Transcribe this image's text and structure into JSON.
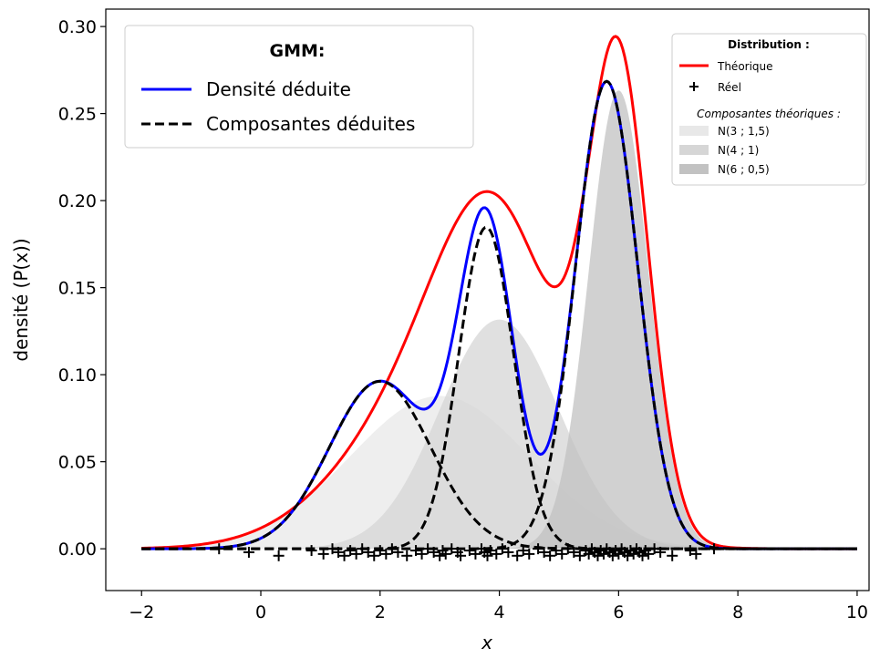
{
  "chart_data": {
    "type": "line",
    "xlabel": "x",
    "ylabel": "densité (P(x))",
    "xlim": [
      -2.6,
      10.2
    ],
    "ylim": [
      -0.024,
      0.31
    ],
    "x_ticks": [
      -2,
      0,
      2,
      4,
      6,
      8,
      10
    ],
    "x_tick_labels": [
      "−2",
      "0",
      "2",
      "4",
      "6",
      "8",
      "10"
    ],
    "y_ticks": [
      0.0,
      0.05,
      0.1,
      0.15,
      0.2,
      0.25,
      0.3
    ],
    "y_tick_labels": [
      "0.00",
      "0.05",
      "0.10",
      "0.15",
      "0.20",
      "0.25",
      "0.30"
    ],
    "grid": false,
    "x_range": [
      -2,
      10
    ],
    "theoretical_components": [
      {
        "name": "N(3 ; 1,5)",
        "mean": 3,
        "sd": 1.5,
        "weight": 0.33,
        "color": "#e8e8e8"
      },
      {
        "name": "N(4 ; 1)",
        "mean": 4,
        "sd": 1,
        "weight": 0.33,
        "color": "#d6d6d6"
      },
      {
        "name": "N(6 ; 0,5)",
        "mean": 6,
        "sd": 0.5,
        "weight": 0.33,
        "color": "#c2c2c2"
      }
    ],
    "inferred_components": [
      {
        "mean": 2.0,
        "sd": 0.85,
        "weight": 0.205
      },
      {
        "mean": 3.78,
        "sd": 0.46,
        "weight": 0.213
      },
      {
        "mean": 5.8,
        "sd": 0.52,
        "weight": 0.35
      }
    ],
    "series": [
      {
        "name": "Théorique",
        "color": "#ff0000",
        "style": "solid"
      },
      {
        "name": "Densité déduite",
        "color": "#0000ff",
        "style": "solid"
      },
      {
        "name": "Composantes déduites",
        "color": "#000000",
        "style": "dashed"
      }
    ],
    "samples": [
      -0.7,
      -0.2,
      0.3,
      0.85,
      1.05,
      1.2,
      1.3,
      1.4,
      1.5,
      1.6,
      1.7,
      1.8,
      1.9,
      2.0,
      2.1,
      2.2,
      2.3,
      2.45,
      2.6,
      2.7,
      2.8,
      2.9,
      3.0,
      3.05,
      3.1,
      3.2,
      3.3,
      3.35,
      3.5,
      3.6,
      3.7,
      3.75,
      3.8,
      3.85,
      3.95,
      4.05,
      4.15,
      4.3,
      4.4,
      4.5,
      4.65,
      4.75,
      4.85,
      4.95,
      5.05,
      5.15,
      5.25,
      5.35,
      5.45,
      5.5,
      5.55,
      5.6,
      5.65,
      5.7,
      5.75,
      5.8,
      5.85,
      5.9,
      5.95,
      6.0,
      6.05,
      6.1,
      6.15,
      6.2,
      6.25,
      6.3,
      6.35,
      6.4,
      6.45,
      6.5,
      6.6,
      6.7,
      6.9,
      7.2,
      7.3,
      7.6
    ],
    "sample_label": "Réel"
  },
  "legend_gmm": {
    "title": "GMM:",
    "items": [
      "Densité déduite",
      "Composantes déduites"
    ]
  },
  "legend_dist": {
    "title": "Distribution :",
    "items": [
      "Théorique",
      "Réel"
    ],
    "subtitle": "Composantes théoriques :",
    "components": [
      "N(3 ; 1,5)",
      "N(4 ; 1)",
      "N(6 ; 0,5)"
    ]
  }
}
